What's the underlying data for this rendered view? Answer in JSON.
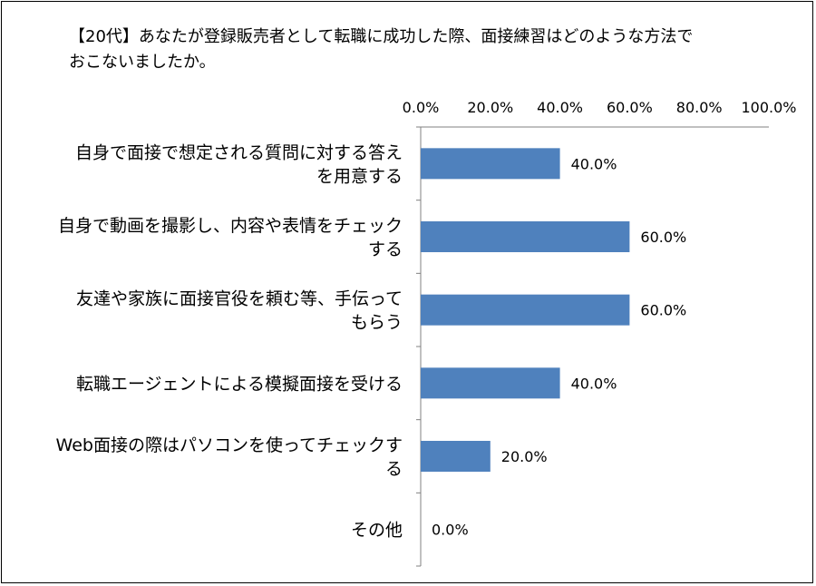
{
  "chart_data": {
    "type": "bar",
    "orientation": "horizontal",
    "title_lines": [
      "【20代】あなたが登録販売者として転職に成功した際、面接練習はどのような方法で",
      "おこないましたか。"
    ],
    "categories": [
      [
        "自身で面接で想定される質問に対する答え",
        "を用意する"
      ],
      [
        "自身で動画を撮影し、内容や表情をチェック",
        "する"
      ],
      [
        "友達や家族に面接官役を頼む等、手伝って",
        "もらう"
      ],
      [
        "転職エージェントによる模擬面接を受ける"
      ],
      [
        "Web面接の際はパソコンを使ってチェックす",
        "る"
      ],
      [
        "その他"
      ]
    ],
    "values": [
      40.0,
      60.0,
      60.0,
      40.0,
      20.0,
      0.0
    ],
    "value_labels": [
      "40.0%",
      "60.0%",
      "60.0%",
      "40.0%",
      "20.0%",
      "0.0%"
    ],
    "x_ticks": [
      "0.0%",
      "20.0%",
      "40.0%",
      "60.0%",
      "80.0%",
      "100.0%"
    ],
    "xlim": [
      0,
      100
    ],
    "axis_position": "top",
    "bar_color": "#4f81bd",
    "grid": false,
    "legend": "none"
  }
}
